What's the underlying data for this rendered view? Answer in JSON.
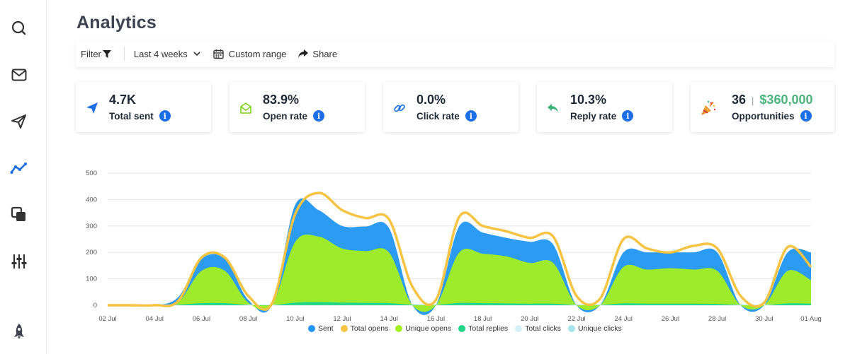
{
  "page": {
    "title": "Analytics"
  },
  "sidebar": {
    "items": [
      {
        "name": "search-icon"
      },
      {
        "name": "mail-icon"
      },
      {
        "name": "send-icon"
      },
      {
        "name": "analytics-icon",
        "active": true
      },
      {
        "name": "copy-icon"
      },
      {
        "name": "sliders-icon"
      },
      {
        "name": "rocket-icon"
      }
    ],
    "active_color": "#1b6ee6"
  },
  "toolbar": {
    "filter_label": "Filter",
    "range_label": "Last 4 weeks",
    "custom_label": "Custom range",
    "share_label": "Share"
  },
  "cards": {
    "sent": {
      "value": "4.7K",
      "label": "Total sent",
      "icon": "paper-plane-icon",
      "color": "#1b6ee6"
    },
    "open": {
      "value": "83.9%",
      "label": "Open rate",
      "icon": "open-envelope-icon",
      "color": "#7ccf1a"
    },
    "click": {
      "value": "0.0%",
      "label": "Click rate",
      "icon": "link-icon",
      "color": "#1b6ee6"
    },
    "reply": {
      "value": "10.3%",
      "label": "Reply rate",
      "icon": "reply-arrow-icon",
      "color": "#3bb57b"
    },
    "opp": {
      "count": "36",
      "separator": "|",
      "amount": "$360,000",
      "label": "Opportunities",
      "icon": "party-popper-icon"
    }
  },
  "chart_data": {
    "type": "area",
    "ylim": [
      0,
      500
    ],
    "yticks": [
      0,
      100,
      200,
      300,
      400,
      500
    ],
    "xticks": [
      "02 Jul",
      "04 Jul",
      "06 Jul",
      "08 Jul",
      "10 Jul",
      "12 Jul",
      "14 Jul",
      "16 Jul",
      "18 Jul",
      "20 Jul",
      "22 Jul",
      "24 Jul",
      "26 Jul",
      "28 Jul",
      "30 Jul",
      "01 Aug"
    ],
    "x": [
      "02 Jul",
      "03 Jul",
      "04 Jul",
      "05 Jul",
      "06 Jul",
      "07 Jul",
      "08 Jul",
      "09 Jul",
      "10 Jul",
      "11 Jul",
      "12 Jul",
      "13 Jul",
      "14 Jul",
      "15 Jul",
      "16 Jul",
      "17 Jul",
      "18 Jul",
      "19 Jul",
      "20 Jul",
      "21 Jul",
      "22 Jul",
      "23 Jul",
      "24 Jul",
      "25 Jul",
      "26 Jul",
      "27 Jul",
      "28 Jul",
      "29 Jul",
      "30 Jul",
      "31 Jul",
      "01 Aug"
    ],
    "grid": true,
    "legend_position": "bottom",
    "series": [
      {
        "name": "Sent",
        "color": "#2196f3",
        "kind": "area",
        "values": [
          0,
          0,
          0,
          30,
          175,
          175,
          20,
          0,
          380,
          360,
          300,
          298,
          292,
          0,
          0,
          300,
          275,
          255,
          240,
          230,
          0,
          0,
          200,
          200,
          200,
          200,
          200,
          0,
          0,
          200,
          200
        ]
      },
      {
        "name": "Total opens",
        "color": "#f6c343",
        "kind": "line",
        "values": [
          0,
          0,
          0,
          15,
          180,
          180,
          35,
          5,
          345,
          425,
          360,
          330,
          325,
          70,
          20,
          335,
          300,
          280,
          255,
          260,
          35,
          25,
          250,
          215,
          200,
          225,
          215,
          35,
          10,
          220,
          145
        ]
      },
      {
        "name": "Unique opens",
        "color": "#a3ef1f",
        "kind": "area",
        "values": [
          0,
          0,
          0,
          10,
          130,
          130,
          10,
          0,
          240,
          260,
          215,
          205,
          200,
          0,
          0,
          200,
          195,
          185,
          160,
          160,
          0,
          0,
          145,
          135,
          140,
          135,
          130,
          0,
          0,
          130,
          95
        ]
      },
      {
        "name": "Total replies",
        "color": "#1dd68a",
        "kind": "area",
        "values": [
          0,
          0,
          0,
          2,
          8,
          8,
          1,
          0,
          10,
          12,
          10,
          9,
          8,
          2,
          1,
          9,
          8,
          7,
          6,
          6,
          1,
          1,
          7,
          6,
          6,
          6,
          5,
          1,
          0,
          7,
          6
        ]
      },
      {
        "name": "Total clicks",
        "color": "#d4f0f7",
        "kind": "area",
        "values": [
          3,
          3,
          3,
          3,
          3,
          3,
          3,
          3,
          3,
          3,
          3,
          3,
          3,
          3,
          3,
          3,
          3,
          3,
          3,
          3,
          3,
          3,
          3,
          3,
          3,
          3,
          3,
          3,
          3,
          3,
          3
        ]
      },
      {
        "name": "Unique clicks",
        "color": "#a8e4ee",
        "kind": "area",
        "values": [
          0,
          0,
          0,
          0,
          0,
          0,
          0,
          0,
          0,
          0,
          0,
          0,
          0,
          0,
          0,
          0,
          0,
          0,
          0,
          0,
          0,
          0,
          0,
          0,
          0,
          0,
          0,
          0,
          0,
          0,
          0
        ]
      }
    ]
  }
}
